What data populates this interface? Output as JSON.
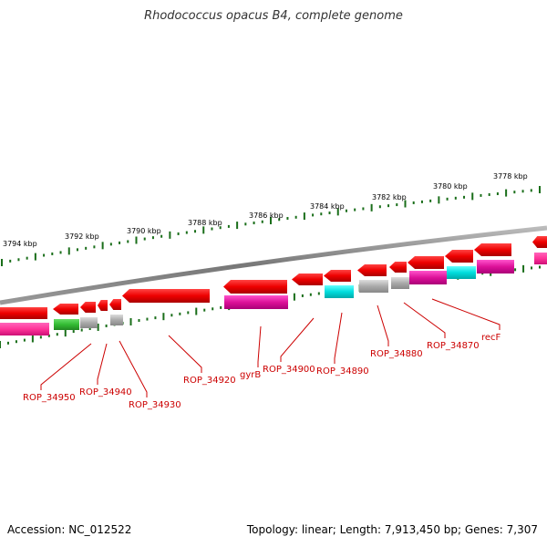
{
  "title": "Rhodococcus opacus B4, complete genome",
  "footer": {
    "accession": "Accession: NC_012522",
    "summary": "Topology: linear; Length: 7,913,450 bp; Genes: 7,307"
  },
  "scale_labels": [
    "3794 kbp",
    "3792 kbp",
    "3790 kbp",
    "3788 kbp",
    "3786 kbp",
    "3784 kbp",
    "3782 kbp",
    "3780 kbp",
    "3778 kbp"
  ],
  "gene_labels": [
    "ROP_34950",
    "ROP_34940",
    "ROP_34930",
    "ROP_34920",
    "gyrB",
    "ROP_34900",
    "ROP_34890",
    "ROP_34880",
    "ROP_34870",
    "recF"
  ],
  "colors": {
    "cds": "#ee0000",
    "magenta": "#dd1199",
    "pink": "#ff3399",
    "green": "#33bb33",
    "gray": "#aaaaaa",
    "cyan": "#00dddd",
    "tick": "#1a6e1a",
    "backbone": "#888888",
    "label": "#cc0000"
  }
}
